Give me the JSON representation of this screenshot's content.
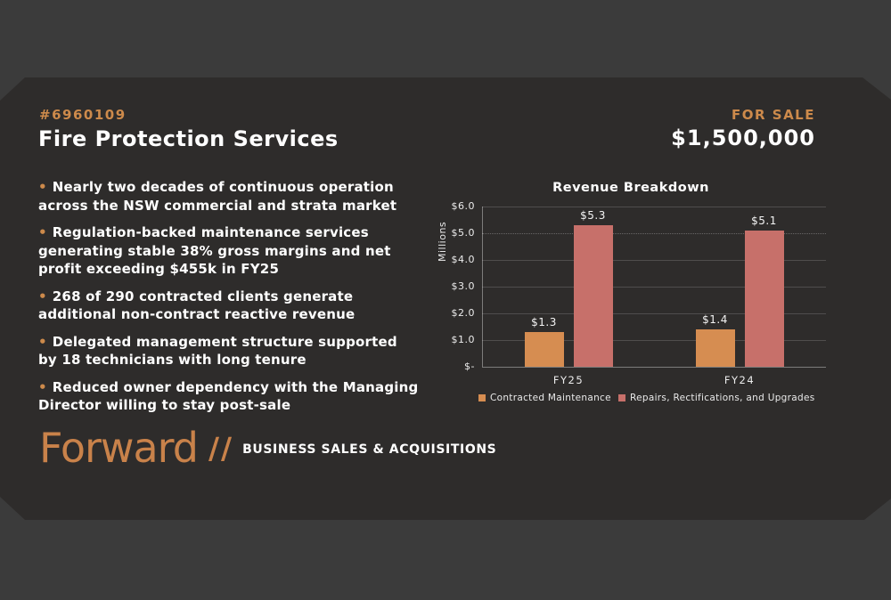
{
  "colors": {
    "outer_background": "#3b3b3b",
    "panel_background": "#2e2c2b",
    "accent_orange": "#cd8a4b",
    "bar_orange": "#d68d51",
    "bar_salmon": "#c7706a",
    "text_white": "#ffffff"
  },
  "header": {
    "listing_number": "#6960109",
    "title": "Fire Protection Services",
    "sale_label": "FOR SALE",
    "price": "$1,500,000"
  },
  "bullets": {
    "char": "•",
    "items": [
      {
        "lines": [
          "Nearly two decades of continuous operation",
          "across the NSW commercial and strata market"
        ]
      },
      {
        "lines": [
          "Regulation-backed maintenance services",
          "generating stable 38% gross margins and net",
          "profit exceeding $455k in FY25"
        ]
      },
      {
        "lines": [
          "268 of 290 contracted clients generate",
          "additional non-contract reactive revenue"
        ]
      },
      {
        "lines": [
          "Delegated management structure supported",
          "by 18 technicians with long tenure"
        ]
      },
      {
        "lines": [
          "Reduced owner dependency with the Managing",
          "Director willing to stay post-sale"
        ]
      }
    ]
  },
  "chart_data": {
    "type": "bar",
    "title": "Revenue Breakdown",
    "ylabel": "Millions",
    "xlabel": "",
    "categories": [
      "FY25",
      "FY24"
    ],
    "series": [
      {
        "name": "Contracted Maintenance",
        "color": "#d68d51",
        "values": [
          1.3,
          1.4
        ],
        "labels": [
          "$1.3",
          "$1.4"
        ]
      },
      {
        "name": "Repairs, Rectifications, and Upgrades",
        "color": "#c7706a",
        "values": [
          5.3,
          5.1
        ],
        "labels": [
          "$5.3",
          "$5.1"
        ]
      }
    ],
    "ylim": [
      0,
      6
    ],
    "y_tick_values": [
      6,
      5,
      4,
      3,
      2,
      1,
      0
    ],
    "y_ticks": [
      "$6.0",
      "$5.0",
      "$4.0",
      "$3.0",
      "$2.0",
      "$1.0",
      "$-"
    ],
    "grid": true,
    "legend_position": "bottom"
  },
  "logo": {
    "brand": "Forward",
    "separator": "//",
    "tagline": "BUSINESS SALES & ACQUISITIONS"
  }
}
